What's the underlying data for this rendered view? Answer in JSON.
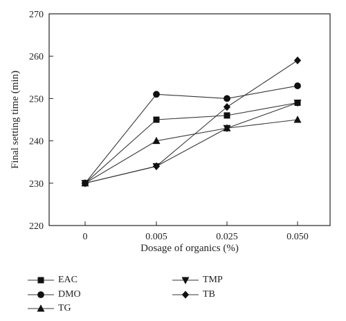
{
  "chart_data": {
    "type": "line",
    "xlabel": "Dosage of organics (%)",
    "ylabel": "Final setting time (min)",
    "categories": [
      "0",
      "0.005",
      "0.025",
      "0.050"
    ],
    "ylim": [
      220,
      270
    ],
    "yticks": [
      220,
      230,
      240,
      250,
      260,
      270
    ],
    "grid": false,
    "legend_position": "bottom",
    "series": [
      {
        "name": "EAC",
        "marker": "square",
        "values": [
          230,
          245,
          246,
          249
        ]
      },
      {
        "name": "DMO",
        "marker": "circle",
        "values": [
          230,
          251,
          250,
          253
        ]
      },
      {
        "name": "TG",
        "marker": "triangle-up",
        "values": [
          230,
          240,
          243,
          245
        ]
      },
      {
        "name": "TMP",
        "marker": "triangle-down",
        "values": [
          230,
          234,
          243,
          249
        ]
      },
      {
        "name": "TB",
        "marker": "diamond",
        "values": [
          230,
          234,
          248,
          259
        ]
      }
    ],
    "colors": {
      "line": "#333333",
      "marker": "#111111",
      "axis": "#222222"
    }
  }
}
